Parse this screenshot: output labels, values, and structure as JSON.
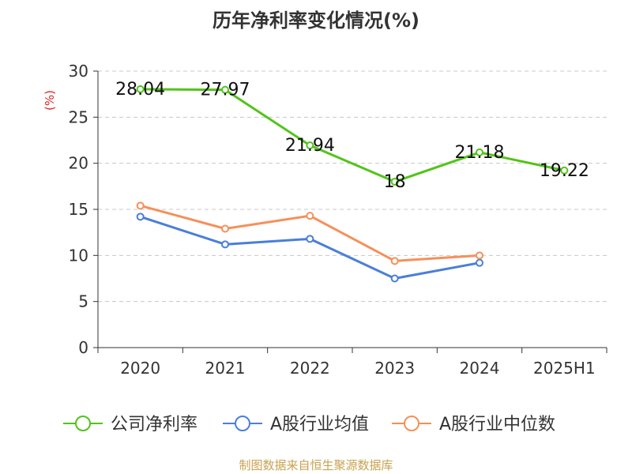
{
  "chart_data": {
    "type": "line",
    "title": "历年净利率变化情况(%)",
    "ylabel": "(%)",
    "ylim": [
      0,
      30
    ],
    "yticks": [
      0,
      5,
      10,
      15,
      20,
      25,
      30
    ],
    "categories": [
      "2020",
      "2021",
      "2022",
      "2023",
      "2024",
      "2025H1"
    ],
    "grid": true,
    "legend": "bottom",
    "series": [
      {
        "name": "公司净利率",
        "color": "#52c41a",
        "values": [
          28.04,
          27.97,
          21.94,
          18,
          21.18,
          19.22
        ],
        "labels": [
          "28.04",
          "27.97",
          "21.94",
          "18",
          "21.18",
          "19.22"
        ]
      },
      {
        "name": "A股行业均值",
        "color": "#4a7fd9",
        "values": [
          14.2,
          11.2,
          11.8,
          7.5,
          9.2,
          null
        ],
        "labels": []
      },
      {
        "name": "A股行业中位数",
        "color": "#f5905a",
        "values": [
          15.4,
          12.9,
          14.3,
          9.4,
          10.0,
          null
        ],
        "labels": []
      }
    ]
  },
  "source": "制图数据来自恒生聚源数据库"
}
